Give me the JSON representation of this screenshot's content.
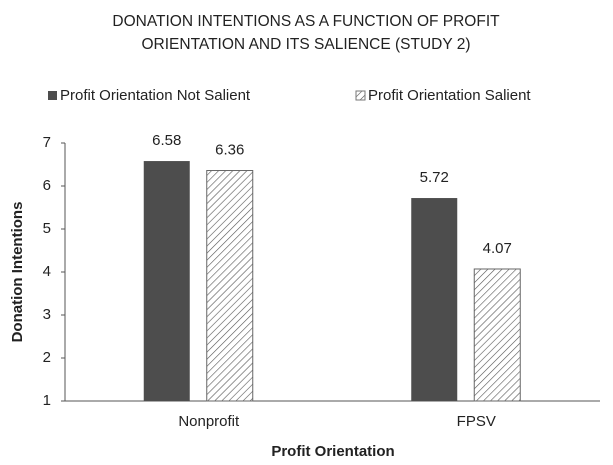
{
  "chart_data": {
    "type": "bar",
    "title": "DONATION INTENTIONS AS A FUNCTION OF PROFIT ORIENTATION AND ITS SALIENCE (STUDY 2)",
    "xlabel": "Profit Orientation",
    "ylabel": "Donation Intentions",
    "categories": [
      "Nonprofit",
      "FPSV"
    ],
    "series": [
      {
        "name": "Profit Orientation Not Salient",
        "color": "#4d4d4d",
        "values": [
          6.58,
          5.72
        ]
      },
      {
        "name": "Profit Orientation Salient",
        "color": "#ffffff",
        "pattern": "hatch",
        "values": [
          6.36,
          4.07
        ]
      }
    ],
    "ylim": [
      1,
      7
    ],
    "yticks": [
      1,
      2,
      3,
      4,
      5,
      6,
      7
    ],
    "grid": false,
    "legend": "top"
  }
}
